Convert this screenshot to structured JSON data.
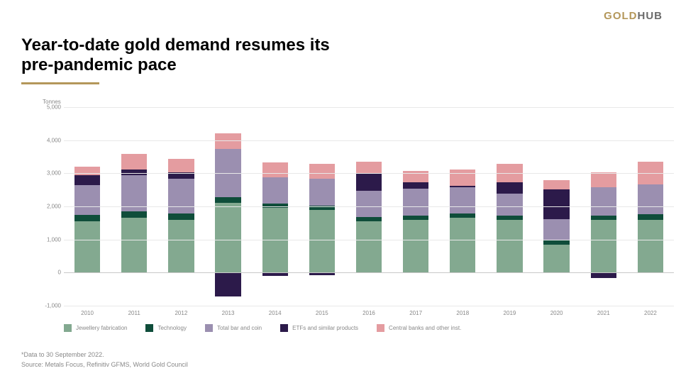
{
  "logo": {
    "left": "GOLD",
    "right": "HUB",
    "left_color": "#b4975a",
    "right_color": "#6b6b6b",
    "fontsize": 15
  },
  "title": {
    "text": "Year-to-date gold demand resumes its\npre-pandemic pace",
    "fontsize": 24,
    "fontweight": 700,
    "color": "#000000"
  },
  "underline_color": "#b4975a",
  "footnote1": "*Data to 30 September 2022.",
  "footnote2": "Source: Metals Focus, Refinitiv GFMS, World Gold Council",
  "footnote_fontsize": 9,
  "chart": {
    "type": "stacked-bar",
    "ylabel": "Tonnes",
    "ylabel_fontsize": 8,
    "xcat_fontsize": 8,
    "ytick_fontsize": 8,
    "legend_fontsize": 8,
    "ylim": [
      -1000,
      5000
    ],
    "ytick_step": 1000,
    "yticks": [
      -1000,
      0,
      1000,
      2000,
      3000,
      4000,
      5000
    ],
    "ytick_labels": [
      "-1,000",
      "0",
      "1,000",
      "2,000",
      "3,000",
      "4,000",
      "5,000"
    ],
    "grid_color": "#e8e8e8",
    "zero_line_color": "#c9c9c9",
    "background_color": "#ffffff",
    "bar_width": 0.55,
    "categories": [
      "2010",
      "2011",
      "2012",
      "2013",
      "2014",
      "2015",
      "2016",
      "2017",
      "2018",
      "2019",
      "2020",
      "2021",
      "2022"
    ],
    "series": [
      {
        "name": "Jewellery fabrication",
        "color": "#83a990"
      },
      {
        "name": "Technology",
        "color": "#0f4d3a"
      },
      {
        "name": "Total bar and coin",
        "color": "#9b8fb0"
      },
      {
        "name": "ETFs and similar products",
        "color": "#2c1a4a"
      },
      {
        "name": "Central banks and other inst.",
        "color": "#e49ca0"
      }
    ],
    "data": {
      "Jewellery fabrication": [
        1550,
        1650,
        1600,
        2100,
        1950,
        1900,
        1550,
        1600,
        1650,
        1600,
        850,
        1600,
        1600
      ],
      "Technology": [
        200,
        200,
        180,
        180,
        130,
        130,
        130,
        130,
        130,
        130,
        120,
        130,
        160
      ],
      "Total bar and coin": [
        900,
        1100,
        1050,
        1450,
        800,
        800,
        800,
        800,
        800,
        650,
        650,
        850,
        900
      ],
      "ETFs and similar products": [
        300,
        160,
        200,
        -720,
        -90,
        -70,
        520,
        200,
        50,
        350,
        900,
        -170,
        0
      ],
      "Central banks and other inst.": [
        250,
        480,
        400,
        480,
        450,
        450,
        350,
        350,
        480,
        550,
        280,
        450,
        680
      ]
    }
  }
}
